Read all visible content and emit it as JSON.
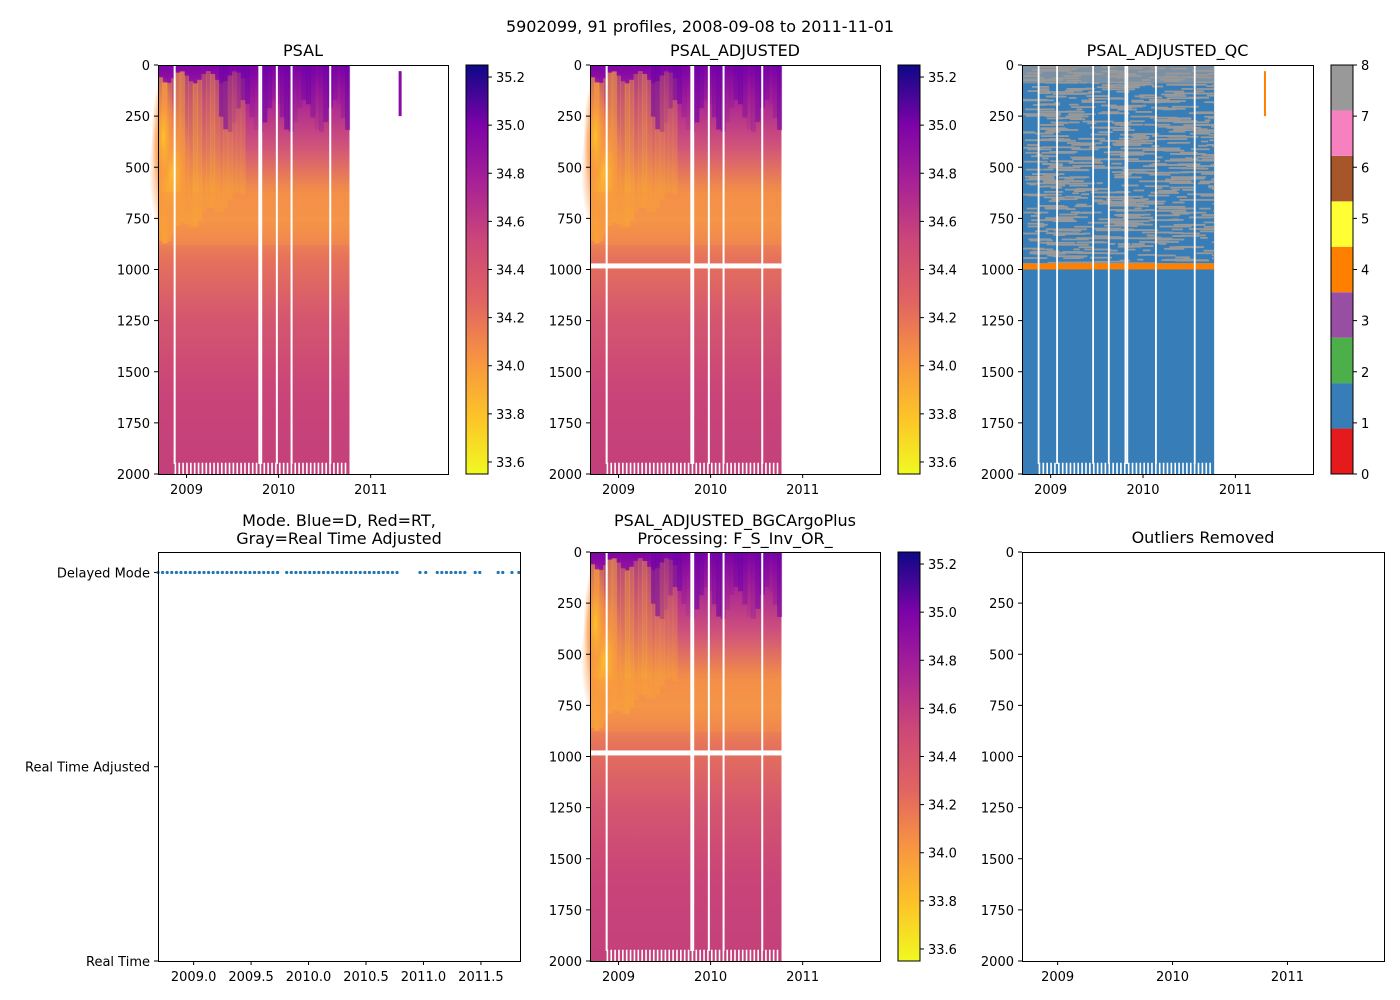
{
  "suptitle": "5902099, 91 profiles, 2008-09-08 to 2011-11-01",
  "chart_data": [
    {
      "id": "psal",
      "type": "heatmap",
      "title": "PSAL",
      "ylim": [
        2000,
        0
      ],
      "xlim": [
        2008.69,
        2011.84
      ],
      "yticks": [
        "0",
        "250",
        "500",
        "750",
        "1000",
        "1250",
        "1500",
        "1750",
        "2000"
      ],
      "xticks": [
        "2009",
        "2010",
        "2011"
      ],
      "colorbar": {
        "range": [
          33.55,
          35.25
        ],
        "ticks": [
          "33.6",
          "33.8",
          "34.0",
          "34.2",
          "34.4",
          "34.6",
          "34.8",
          "35.0",
          "35.2"
        ]
      },
      "data_end": 2010.77,
      "isolated_profile": {
        "x": 2011.32,
        "depth_range": [
          30,
          250
        ],
        "value": 34.8
      },
      "description": "Salinity section: fresh (33.6-34.0) intermediate layer near 500-750 dbar early in record, saltier (34.8-35.2) near surface, ~34.5 at depth"
    },
    {
      "id": "psal_adjusted",
      "type": "heatmap",
      "title": "PSAL_ADJUSTED",
      "ylim": [
        2000,
        0
      ],
      "xticks": [
        "2009",
        "2010",
        "2011"
      ],
      "yticks": [
        "0",
        "250",
        "500",
        "750",
        "1000",
        "1250",
        "1500",
        "1750",
        "2000"
      ],
      "colorbar": {
        "range": [
          33.55,
          35.25
        ],
        "ticks": [
          "33.6",
          "33.8",
          "34.0",
          "34.2",
          "34.4",
          "34.6",
          "34.8",
          "35.0",
          "35.2"
        ]
      },
      "data_end": 2010.77,
      "gap_depth": 985
    },
    {
      "id": "psal_adjusted_qc",
      "type": "heatmap",
      "title": "PSAL_ADJUSTED_QC",
      "ylim": [
        2000,
        0
      ],
      "xticks": [
        "2009",
        "2010",
        "2011"
      ],
      "yticks": [
        "0",
        "250",
        "500",
        "750",
        "1000",
        "1250",
        "1500",
        "1750",
        "2000"
      ],
      "colorbar": {
        "range": [
          0,
          8
        ],
        "ticks": [
          "0",
          "1",
          "2",
          "3",
          "4",
          "5",
          "6",
          "7",
          "8"
        ],
        "colors": [
          "#e41a1c",
          "#377eb8",
          "#4daf4a",
          "#984ea3",
          "#ff7f00",
          "#ffff33",
          "#a65628",
          "#f781bf",
          "#999999"
        ]
      },
      "qc_layers": [
        {
          "depth_range": [
            0,
            970
          ],
          "flags": "mix of 1 and 8"
        },
        {
          "depth_range": [
            970,
            1000
          ],
          "flag": 4
        },
        {
          "depth_range": [
            1000,
            2000
          ],
          "flag": 1
        }
      ],
      "isolated_profile": {
        "x": 2011.32,
        "depth_range": [
          30,
          250
        ],
        "flag": 4
      }
    },
    {
      "id": "mode",
      "type": "scatter",
      "title": "Mode. Blue=D, Red=RT,",
      "title_line2": "Gray=Real Time Adjusted",
      "xlim": [
        2008.69,
        2011.84
      ],
      "xticks": [
        "2009.0",
        "2009.5",
        "2010.0",
        "2010.5",
        "2011.0",
        "2011.5"
      ],
      "yticks": [
        "Delayed Mode",
        "Real Time Adjusted",
        "Real Time"
      ],
      "series": [
        {
          "name": "Delayed Mode",
          "color": "#1f77b4",
          "y": "Delayed Mode",
          "x": [
            2008.69,
            2008.73,
            2008.77,
            2008.81,
            2008.85,
            2008.89,
            2008.93,
            2008.97,
            2009.01,
            2009.05,
            2009.09,
            2009.13,
            2009.17,
            2009.21,
            2009.25,
            2009.29,
            2009.33,
            2009.37,
            2009.41,
            2009.45,
            2009.49,
            2009.53,
            2009.57,
            2009.61,
            2009.65,
            2009.69,
            2009.73,
            2009.81,
            2009.85,
            2009.89,
            2009.93,
            2009.97,
            2010.01,
            2010.05,
            2010.09,
            2010.13,
            2010.17,
            2010.21,
            2010.25,
            2010.29,
            2010.33,
            2010.37,
            2010.41,
            2010.45,
            2010.49,
            2010.53,
            2010.57,
            2010.61,
            2010.65,
            2010.69,
            2010.73,
            2010.77,
            2010.97,
            2011.02,
            2011.12,
            2011.16,
            2011.2,
            2011.24,
            2011.28,
            2011.32,
            2011.36,
            2011.45,
            2011.49,
            2011.65,
            2011.69,
            2011.77,
            2011.83
          ]
        }
      ]
    },
    {
      "id": "psal_bgc",
      "type": "heatmap",
      "title": "PSAL_ADJUSTED_BGCArgoPlus",
      "title_line2": "Processing: F_S_Inv_OR_",
      "ylim": [
        2000,
        0
      ],
      "xticks": [
        "2009",
        "2010",
        "2011"
      ],
      "yticks": [
        "0",
        "250",
        "500",
        "750",
        "1000",
        "1250",
        "1500",
        "1750",
        "2000"
      ],
      "colorbar": {
        "range": [
          33.55,
          35.25
        ],
        "ticks": [
          "33.6",
          "33.8",
          "34.0",
          "34.2",
          "34.4",
          "34.6",
          "34.8",
          "35.0",
          "35.2"
        ]
      },
      "data_end": 2010.77,
      "gap_depth": 985
    },
    {
      "id": "outliers",
      "type": "scatter",
      "title": "Outliers Removed",
      "ylim": [
        2000,
        0
      ],
      "xticks": [
        "2009",
        "2010",
        "2011"
      ],
      "yticks": [
        "0",
        "250",
        "500",
        "750",
        "1000",
        "1250",
        "1500",
        "1750",
        "2000"
      ],
      "series": []
    }
  ]
}
